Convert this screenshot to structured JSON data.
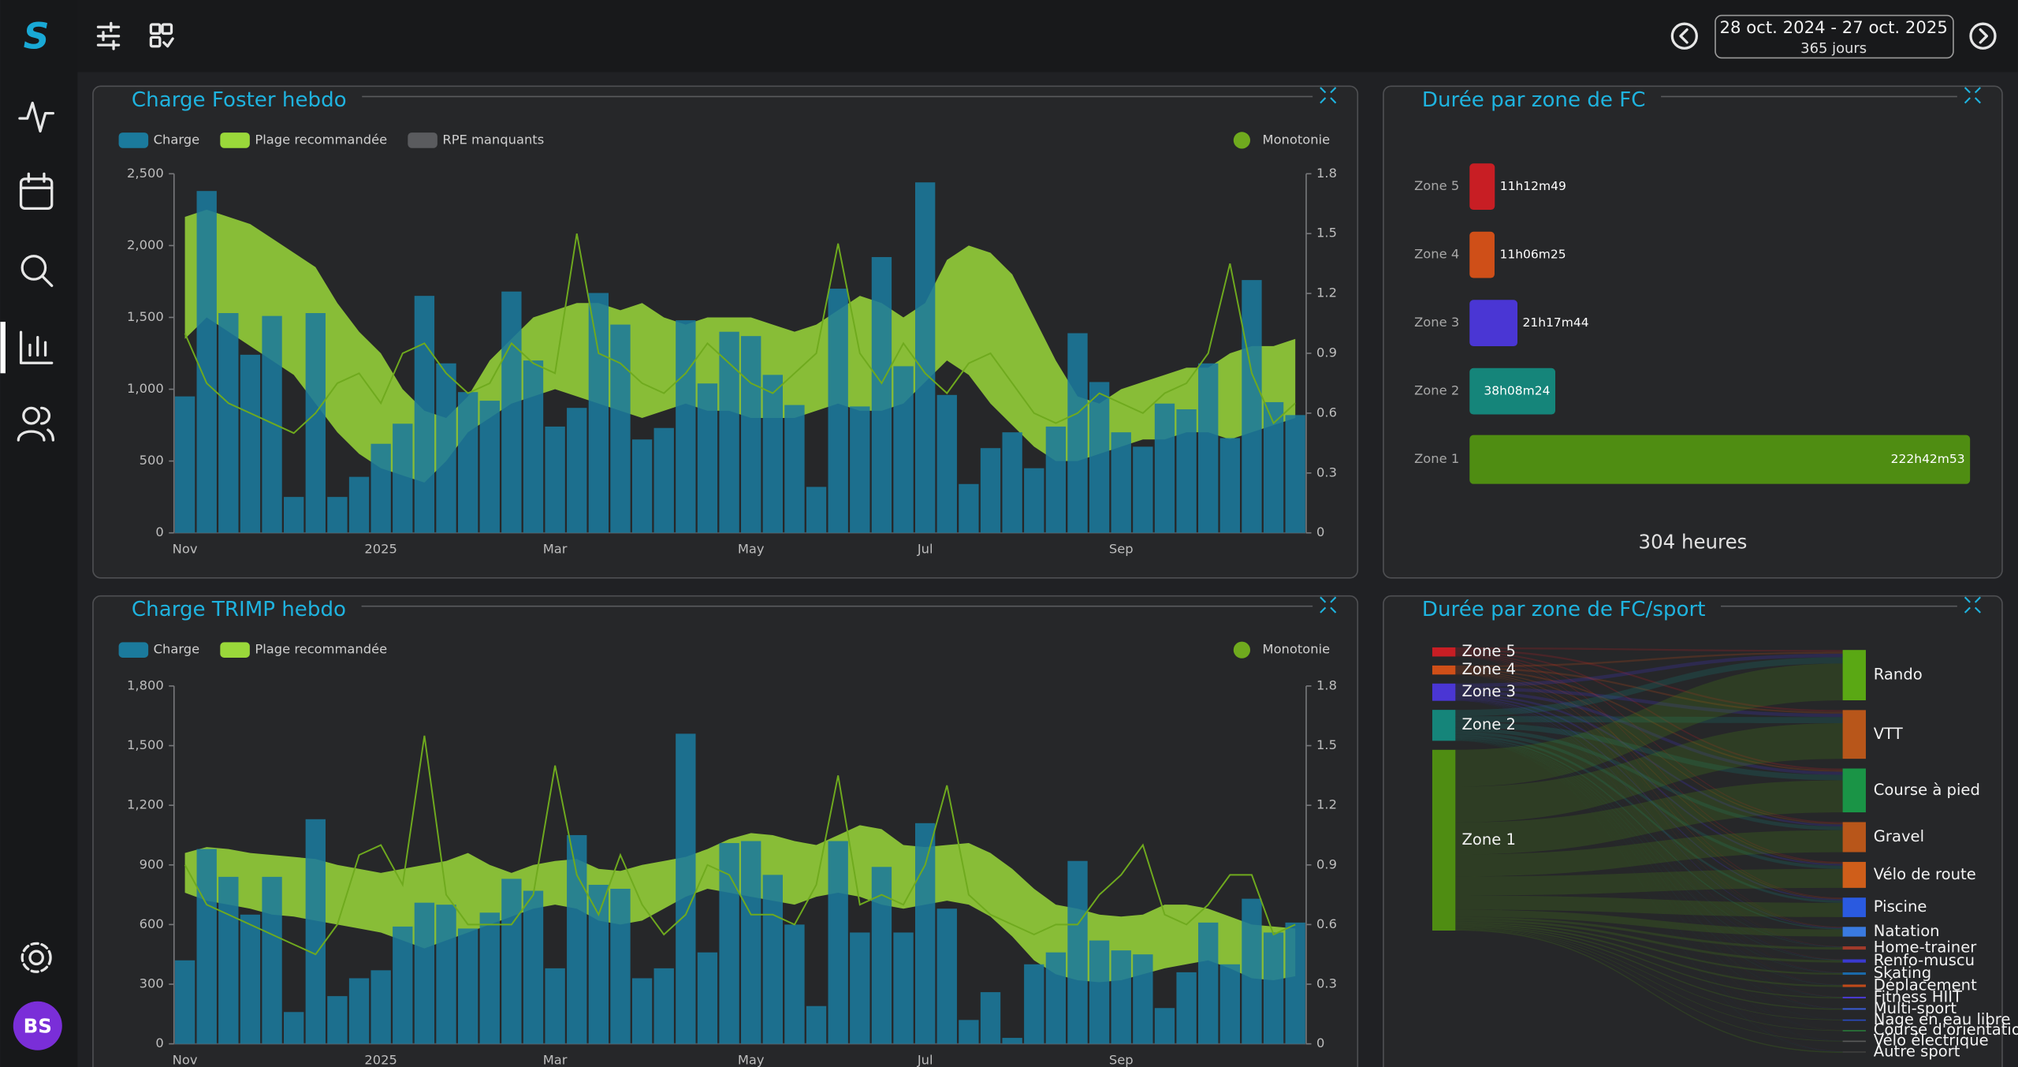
{
  "header": {
    "logo": "S",
    "date_range": "28 oct. 2024 - 27 oct. 2025",
    "days": "365 jours",
    "avatar": "BS"
  },
  "chart_data": [
    {
      "type": "bar",
      "title": "Charge Foster hebdo",
      "categories": [
        "Nov",
        null,
        null,
        null,
        null,
        null,
        null,
        null,
        null,
        "2025",
        null,
        null,
        null,
        null,
        null,
        null,
        null,
        "Mar",
        null,
        null,
        null,
        null,
        null,
        null,
        null,
        null,
        "May",
        null,
        null,
        null,
        null,
        null,
        null,
        null,
        "Jul",
        null,
        null,
        null,
        null,
        null,
        null,
        null,
        null,
        "Sep",
        null,
        null,
        null,
        null,
        null,
        null,
        null,
        null
      ],
      "series": [
        {
          "name": "Charge",
          "color": "#1b7a9c",
          "values": [
            950,
            2380,
            1530,
            1240,
            1510,
            250,
            1530,
            250,
            390,
            620,
            760,
            1650,
            1180,
            980,
            920,
            1680,
            1200,
            740,
            870,
            1670,
            1450,
            650,
            730,
            1480,
            1040,
            1400,
            1370,
            1100,
            890,
            320,
            1700,
            880,
            1920,
            1160,
            2440,
            960,
            340,
            590,
            700,
            450,
            740,
            1390,
            1050,
            700,
            600,
            900,
            860,
            1180,
            660,
            1760,
            910,
            820
          ]
        },
        {
          "name": "Plage recommandée",
          "color": "#9ad83a",
          "upper": [
            2200,
            2250,
            2200,
            2150,
            2050,
            1950,
            1850,
            1600,
            1400,
            1250,
            1000,
            850,
            800,
            950,
            1200,
            1350,
            1500,
            1550,
            1600,
            1600,
            1550,
            1600,
            1500,
            1450,
            1500,
            1500,
            1500,
            1450,
            1400,
            1450,
            1550,
            1650,
            1600,
            1500,
            1600,
            1900,
            2000,
            1950,
            1800,
            1500,
            1200,
            950,
            900,
            1000,
            1050,
            1100,
            1150,
            1150,
            1250,
            1300,
            1300,
            1350
          ],
          "lower": [
            1350,
            1500,
            1400,
            1300,
            1200,
            1100,
            900,
            700,
            550,
            450,
            400,
            350,
            500,
            700,
            800,
            900,
            950,
            1000,
            950,
            900,
            850,
            800,
            850,
            900,
            850,
            850,
            800,
            800,
            800,
            850,
            900,
            850,
            850,
            900,
            1050,
            1200,
            1100,
            900,
            750,
            600,
            500,
            500,
            550,
            600,
            650,
            650,
            700,
            700,
            650,
            700,
            750,
            800
          ]
        },
        {
          "name": "RPE manquants",
          "color": "#5a5b5e"
        },
        {
          "name": "Monotonie",
          "color": "#6faa1e",
          "axis": "y2",
          "values": [
            1.0,
            0.75,
            0.65,
            0.6,
            0.55,
            0.5,
            0.6,
            0.75,
            0.8,
            0.65,
            0.9,
            0.95,
            0.8,
            0.7,
            0.75,
            0.95,
            0.85,
            0.8,
            1.5,
            0.9,
            0.85,
            0.75,
            0.7,
            0.8,
            0.95,
            0.85,
            0.75,
            0.7,
            0.8,
            0.9,
            1.45,
            0.9,
            0.75,
            0.95,
            0.8,
            0.7,
            0.85,
            0.9,
            0.75,
            0.6,
            0.55,
            0.6,
            0.7,
            0.65,
            0.6,
            0.7,
            0.75,
            0.9,
            1.35,
            0.8,
            0.55,
            0.65
          ]
        }
      ],
      "ylim": [
        0,
        2500
      ],
      "yticks": [
        0,
        500,
        {
          "value": 1000,
          "label": "1,000"
        },
        {
          "value": 1500,
          "label": "1,500"
        },
        {
          "value": 2000,
          "label": "2,000"
        },
        {
          "value": 2500,
          "label": "2,500"
        }
      ],
      "y2lim": [
        0,
        1.8
      ],
      "y2ticks": [
        0,
        0.3,
        0.6,
        0.9,
        1.2,
        1.5,
        1.8
      ]
    },
    {
      "type": "hbar",
      "title": "Durée par zone de FC",
      "categories": [
        "Zone 5",
        "Zone 4",
        "Zone 3",
        "Zone 2",
        "Zone 1"
      ],
      "values": [
        11.21,
        11.11,
        21.3,
        38.14,
        222.71
      ],
      "value_labels": [
        "11h12m49",
        "11h06m25",
        "21h17m44",
        "38h08m24",
        "222h42m53"
      ],
      "colors": [
        "#c81e24",
        "#cf4f18",
        "#4a36d4",
        "#15857a",
        "#4f8d12"
      ],
      "total_label": "304 heures"
    },
    {
      "type": "bar",
      "title": "Charge TRIMP hebdo",
      "categories": [
        "Nov",
        null,
        null,
        null,
        null,
        null,
        null,
        null,
        null,
        "2025",
        null,
        null,
        null,
        null,
        null,
        null,
        null,
        "Mar",
        null,
        null,
        null,
        null,
        null,
        null,
        null,
        null,
        "May",
        null,
        null,
        null,
        null,
        null,
        null,
        null,
        "Jul",
        null,
        null,
        null,
        null,
        null,
        null,
        null,
        null,
        "Sep",
        null,
        null,
        null,
        null,
        null,
        null,
        null,
        null
      ],
      "series": [
        {
          "name": "Charge",
          "color": "#1b7a9c",
          "values": [
            420,
            980,
            840,
            650,
            840,
            160,
            1130,
            240,
            330,
            370,
            590,
            710,
            700,
            580,
            660,
            830,
            770,
            380,
            1050,
            800,
            780,
            330,
            380,
            1560,
            460,
            1010,
            1020,
            850,
            600,
            190,
            1020,
            560,
            890,
            560,
            1110,
            680,
            120,
            260,
            30,
            400,
            460,
            920,
            520,
            470,
            450,
            180,
            360,
            610,
            400,
            730,
            560,
            610
          ]
        },
        {
          "name": "Plage recommandée",
          "color": "#9ad83a",
          "upper": [
            960,
            990,
            980,
            960,
            950,
            940,
            930,
            900,
            880,
            860,
            880,
            900,
            920,
            960,
            900,
            860,
            900,
            920,
            930,
            880,
            870,
            900,
            920,
            940,
            980,
            1030,
            1060,
            1050,
            1020,
            1000,
            1050,
            1100,
            1080,
            1000,
            990,
            1000,
            1010,
            960,
            880,
            780,
            700,
            680,
            650,
            640,
            650,
            700,
            700,
            680,
            640,
            600,
            590,
            580
          ],
          "lower": [
            760,
            720,
            700,
            680,
            650,
            640,
            620,
            600,
            580,
            560,
            520,
            480,
            520,
            560,
            600,
            640,
            680,
            700,
            680,
            620,
            600,
            620,
            680,
            740,
            780,
            760,
            740,
            720,
            700,
            740,
            760,
            740,
            700,
            680,
            700,
            720,
            700,
            640,
            540,
            420,
            350,
            320,
            310,
            320,
            350,
            380,
            400,
            420,
            380,
            330,
            320,
            340
          ]
        },
        {
          "name": "Monotonie",
          "color": "#6faa1e",
          "axis": "y2",
          "values": [
            0.9,
            0.7,
            0.65,
            0.6,
            0.55,
            0.5,
            0.45,
            0.6,
            0.95,
            1.0,
            0.8,
            1.55,
            0.75,
            0.6,
            0.6,
            0.6,
            0.75,
            1.4,
            0.85,
            0.65,
            0.95,
            0.7,
            0.55,
            0.65,
            0.9,
            0.85,
            0.65,
            0.65,
            0.6,
            0.8,
            1.35,
            0.7,
            0.75,
            0.7,
            0.9,
            1.3,
            0.75,
            0.65,
            0.6,
            0.55,
            0.6,
            0.6,
            0.75,
            0.85,
            1.0,
            0.65,
            0.6,
            0.7,
            0.85,
            0.85,
            0.55,
            0.6
          ]
        }
      ],
      "ylim": [
        0,
        1800
      ],
      "yticks": [
        0,
        300,
        600,
        900,
        {
          "value": 1200,
          "label": "1,200"
        },
        {
          "value": 1500,
          "label": "1,500"
        },
        {
          "value": 1800,
          "label": "1,800"
        }
      ],
      "y2lim": [
        0,
        1.8
      ],
      "y2ticks": [
        0,
        0.3,
        0.6,
        0.9,
        1.2,
        1.5,
        1.8
      ]
    },
    {
      "type": "sankey",
      "title": "Durée par zone de FC/sport",
      "sources": {
        "labels": [
          "Zone 5",
          "Zone 4",
          "Zone 3",
          "Zone 2",
          "Zone 1"
        ],
        "values": [
          11.21,
          11.11,
          21.3,
          38.14,
          222.71
        ],
        "colors": [
          "#c81e24",
          "#cf4f18",
          "#4a36d4",
          "#15857a",
          "#4f8d12"
        ]
      },
      "targets": {
        "labels": [
          "Rando",
          "VTT",
          "Course à pied",
          "Gravel",
          "Vélo de route",
          "Piscine",
          "Natation",
          "Home-trainer",
          "Renfo-muscu",
          "Skating",
          "Déplacement",
          "Fitness HIIT",
          "Multi-sport",
          "Nage en eau libre",
          "Course d'orientation",
          "Vélo électrique",
          "Autre sport"
        ],
        "values": [
          62,
          60,
          54,
          37,
          32,
          24,
          12,
          4,
          4,
          3,
          3,
          2,
          2,
          1,
          1,
          1,
          2
        ],
        "colors": [
          "#5aa814",
          "#b8561a",
          "#1a9446",
          "#b8561a",
          "#cf5e1a",
          "#2a5ae0",
          "#3a7ae0",
          "#a03a2a",
          "#3a3ad0",
          "#1a6aaa",
          "#c04a1a",
          "#4a3ad0",
          "#3a5ad0",
          "#2a4ac0",
          "#2a7a3a",
          "#5a5a5a",
          "#3a3a3a"
        ]
      }
    }
  ]
}
